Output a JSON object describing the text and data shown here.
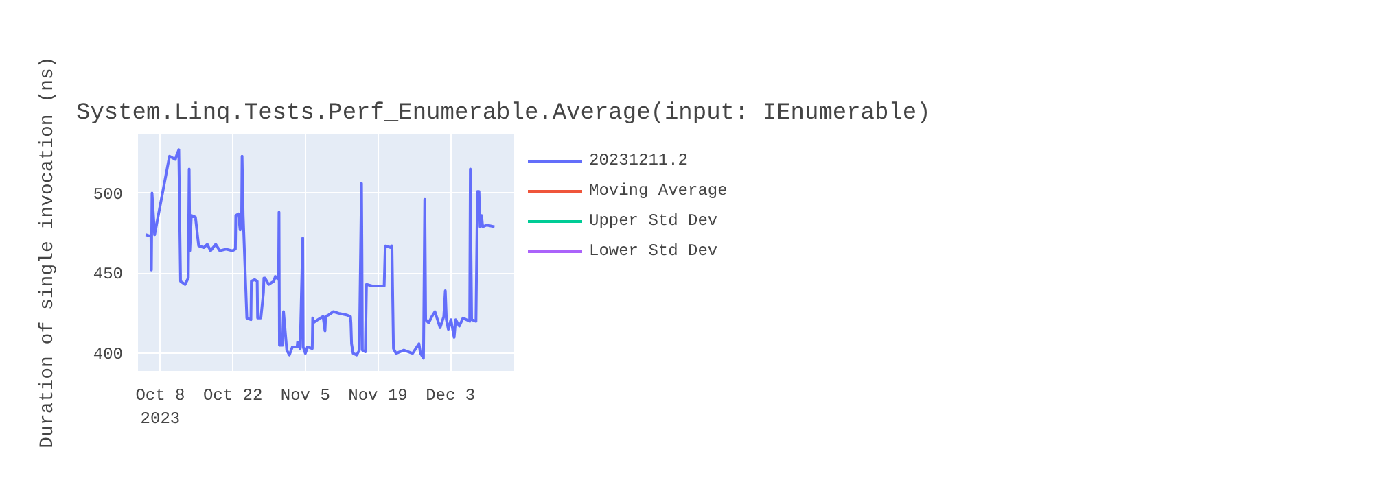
{
  "chart_data": {
    "type": "line",
    "title": "System.Linq.Tests.Perf_Enumerable.Average(input: IEnumerable)",
    "ylabel": "Duration of single invocation (ns)",
    "x": [
      "2023-10-05T05:00",
      "2023-10-06T05:00",
      "2023-10-06T07:00",
      "2023-10-06T10:00",
      "2023-10-06T22:00",
      "2023-10-09T19:00",
      "2023-10-10T22:00",
      "2023-10-11T05:00",
      "2023-10-11T14:00",
      "2023-10-11T22:00",
      "2023-10-12T19:00",
      "2023-10-13T10:00",
      "2023-10-13T14:00",
      "2023-10-13T17:00",
      "2023-10-14T00:00",
      "2023-10-14T19:00",
      "2023-10-15T10:00",
      "2023-10-16T10:00",
      "2023-10-17T02:00",
      "2023-10-17T17:00",
      "2023-10-18T17:00",
      "2023-10-19T12:00",
      "2023-10-20T17:00",
      "2023-10-21T22:00",
      "2023-10-22T12:00",
      "2023-10-22T14:00",
      "2023-10-23T02:00",
      "2023-10-23T10:00",
      "2023-10-23T17:00",
      "2023-10-23T19:00",
      "2023-10-24T00:00",
      "2023-10-24T17:00",
      "2023-10-25T12:00",
      "2023-10-25T14:00",
      "2023-10-26T05:00",
      "2023-10-26T17:00",
      "2023-10-26T19:00",
      "2023-10-27T10:00",
      "2023-10-27T22:00",
      "2023-10-28T00:00",
      "2023-10-28T05:00",
      "2023-10-28T22:00",
      "2023-10-29T22:00",
      "2023-10-30T05:00",
      "2023-10-30T20:00",
      "2023-10-30T22:00",
      "2023-10-31T00:00",
      "2023-10-31T14:00",
      "2023-10-31T19:00",
      "2023-11-01T10:00",
      "2023-11-01T22:00",
      "2023-11-02T12:00",
      "2023-11-03T10:00",
      "2023-11-03T12:00",
      "2023-11-04T00:00",
      "2023-11-04T12:00",
      "2023-11-04T14:00",
      "2023-11-05T00:00",
      "2023-11-05T10:00",
      "2023-11-06T08:00",
      "2023-11-06T10:00",
      "2023-11-06T12:00",
      "2023-11-07T10:00",
      "2023-11-08T10:00",
      "2023-11-08T19:00",
      "2023-11-08T22:00",
      "2023-11-09T12:00",
      "2023-11-10T10:00",
      "2023-11-11T10:00",
      "2023-11-12T22:00",
      "2023-11-13T17:00",
      "2023-11-13T19:00",
      "2023-11-13T22:00",
      "2023-11-14T05:00",
      "2023-11-14T22:00",
      "2023-11-15T10:00",
      "2023-11-15T20:00",
      "2023-11-15T22:00",
      "2023-11-16T00:00",
      "2023-11-16T14:00",
      "2023-11-16T19:00",
      "2023-11-18T00:00",
      "2023-11-20T05:00",
      "2023-11-20T10:00",
      "2023-11-21T12:00",
      "2023-11-21T17:00",
      "2023-11-22T00:00",
      "2023-11-22T12:00",
      "2023-11-24T00:00",
      "2023-11-25T17:00",
      "2023-11-26T22:00",
      "2023-11-27T05:00",
      "2023-11-27T19:00",
      "2023-11-28T01:00",
      "2023-11-28T03:00",
      "2023-11-28T05:00",
      "2023-11-28T19:00",
      "2023-11-29T10:00",
      "2023-11-30T00:00",
      "2023-11-30T12:00",
      "2023-12-01T00:00",
      "2023-12-01T17:00",
      "2023-12-02T00:00",
      "2023-12-02T05:00",
      "2023-12-02T14:00",
      "2023-12-03T02:00",
      "2023-12-03T17:00",
      "2023-12-04T00:00",
      "2023-12-04T17:00",
      "2023-12-05T10:00",
      "2023-12-06T17:00",
      "2023-12-06T20:00",
      "2023-12-06T22:00",
      "2023-12-07T02:00",
      "2023-12-07T22:00",
      "2023-12-08T05:00",
      "2023-12-08T12:00",
      "2023-12-08T17:00",
      "2023-12-09T00:00",
      "2023-12-09T05:00",
      "2023-12-10T00:00",
      "2023-12-11T12:00"
    ],
    "series": [
      {
        "name": "20231211.2",
        "color": "#636efa",
        "values": [
          474,
          473,
          452,
          500,
          474,
          523,
          521,
          524,
          527,
          445,
          443,
          447,
          515,
          464,
          486,
          485,
          467,
          466,
          468,
          464,
          468,
          464,
          465,
          464,
          465,
          486,
          487,
          477,
          487,
          523,
          486,
          422,
          421,
          445,
          446,
          445,
          422,
          422,
          438,
          447,
          447,
          443,
          445,
          448,
          446,
          488,
          405,
          405,
          426,
          402,
          399,
          404,
          404,
          407,
          403,
          472,
          404,
          400,
          404,
          403,
          422,
          419,
          421,
          423,
          414,
          423,
          424,
          426,
          425,
          424,
          423,
          419,
          406,
          400,
          399,
          402,
          506,
          462,
          402,
          401,
          443,
          442,
          442,
          467,
          466,
          467,
          403,
          400,
          402,
          400,
          406,
          400,
          397,
          496,
          460,
          421,
          419,
          423,
          426,
          421,
          416,
          423,
          439,
          421,
          415,
          421,
          410,
          421,
          417,
          422,
          420,
          515,
          475,
          421,
          420,
          501,
          501,
          479,
          486,
          479,
          480,
          479
        ]
      },
      {
        "name": "Moving Average",
        "color": "#ef553b",
        "values": [
          null,
          null,
          null,
          null,
          null,
          null,
          null,
          null,
          null,
          null,
          null,
          null,
          null,
          null,
          null,
          null,
          null,
          null,
          null,
          null,
          null,
          null,
          null,
          null,
          null,
          null,
          null,
          null,
          null,
          null,
          null,
          null,
          null,
          null,
          null,
          null,
          null,
          null,
          null,
          null,
          null,
          null,
          null,
          null,
          null,
          null,
          null,
          null,
          null,
          null,
          null,
          null,
          null,
          null,
          null,
          null,
          null,
          null,
          null,
          null,
          null,
          null,
          null,
          null,
          null,
          null,
          null,
          null,
          null,
          null,
          null,
          null,
          null,
          null,
          null,
          null,
          null,
          null,
          null,
          null,
          null,
          null,
          null,
          null,
          null,
          null,
          null,
          null,
          null,
          null,
          null,
          null,
          null,
          null,
          null,
          null,
          null,
          null,
          null,
          null,
          null,
          null,
          null,
          null,
          null,
          null,
          null,
          null,
          null,
          null,
          null,
          null,
          null,
          null,
          null,
          null,
          null,
          null,
          null,
          null,
          null,
          null
        ]
      },
      {
        "name": "Upper Std Dev",
        "color": "#00cc96",
        "values": [
          null,
          null,
          null,
          null,
          null,
          null,
          null,
          null,
          null,
          null,
          null,
          null,
          null,
          null,
          null,
          null,
          null,
          null,
          null,
          null,
          null,
          null,
          null,
          null,
          null,
          null,
          null,
          null,
          null,
          null,
          null,
          null,
          null,
          null,
          null,
          null,
          null,
          null,
          null,
          null,
          null,
          null,
          null,
          null,
          null,
          null,
          null,
          null,
          null,
          null,
          null,
          null,
          null,
          null,
          null,
          null,
          null,
          null,
          null,
          null,
          null,
          null,
          null,
          null,
          null,
          null,
          null,
          null,
          null,
          null,
          null,
          null,
          null,
          null,
          null,
          null,
          null,
          null,
          null,
          null,
          null,
          null,
          null,
          null,
          null,
          null,
          null,
          null,
          null,
          null,
          null,
          null,
          null,
          null,
          null,
          null,
          null,
          null,
          null,
          null,
          null,
          null,
          null,
          null,
          null,
          null,
          null,
          null,
          null,
          null,
          null,
          null,
          null,
          null,
          null,
          null,
          null,
          null,
          null,
          null,
          null,
          null
        ]
      },
      {
        "name": "Lower Std Dev",
        "color": "#ab63fa",
        "values": [
          null,
          null,
          null,
          null,
          null,
          null,
          null,
          null,
          null,
          null,
          null,
          null,
          null,
          null,
          null,
          null,
          null,
          null,
          null,
          null,
          null,
          null,
          null,
          null,
          null,
          null,
          null,
          null,
          null,
          null,
          null,
          null,
          null,
          null,
          null,
          null,
          null,
          null,
          null,
          null,
          null,
          null,
          null,
          null,
          null,
          null,
          null,
          null,
          null,
          null,
          null,
          null,
          null,
          null,
          null,
          null,
          null,
          null,
          null,
          null,
          null,
          null,
          null,
          null,
          null,
          null,
          null,
          null,
          null,
          null,
          null,
          null,
          null,
          null,
          null,
          null,
          null,
          null,
          null,
          null,
          null,
          null,
          null,
          null,
          null,
          null,
          null,
          null,
          null,
          null,
          null,
          null,
          null,
          null,
          null,
          null,
          null,
          null,
          null,
          null,
          null,
          null,
          null,
          null,
          null,
          null,
          null,
          null,
          null,
          null,
          null,
          null,
          null,
          null,
          null,
          null,
          null,
          null,
          null,
          null,
          null,
          null
        ]
      }
    ],
    "xlim": [
      "2023-10-03T17:00",
      "2023-12-15T07:00"
    ],
    "xticks": [
      {
        "value": "2023-10-08",
        "label": "Oct 8\n2023"
      },
      {
        "value": "2023-10-22",
        "label": "Oct 22"
      },
      {
        "value": "2023-11-05",
        "label": "Nov 5"
      },
      {
        "value": "2023-11-19",
        "label": "Nov 19"
      },
      {
        "value": "2023-12-03",
        "label": "Dec 3"
      }
    ],
    "ylim": [
      389,
      537
    ],
    "yticks": [
      400,
      450,
      500
    ],
    "grid": true,
    "legend": "top right",
    "marker": "none",
    "line_style": "solid"
  }
}
